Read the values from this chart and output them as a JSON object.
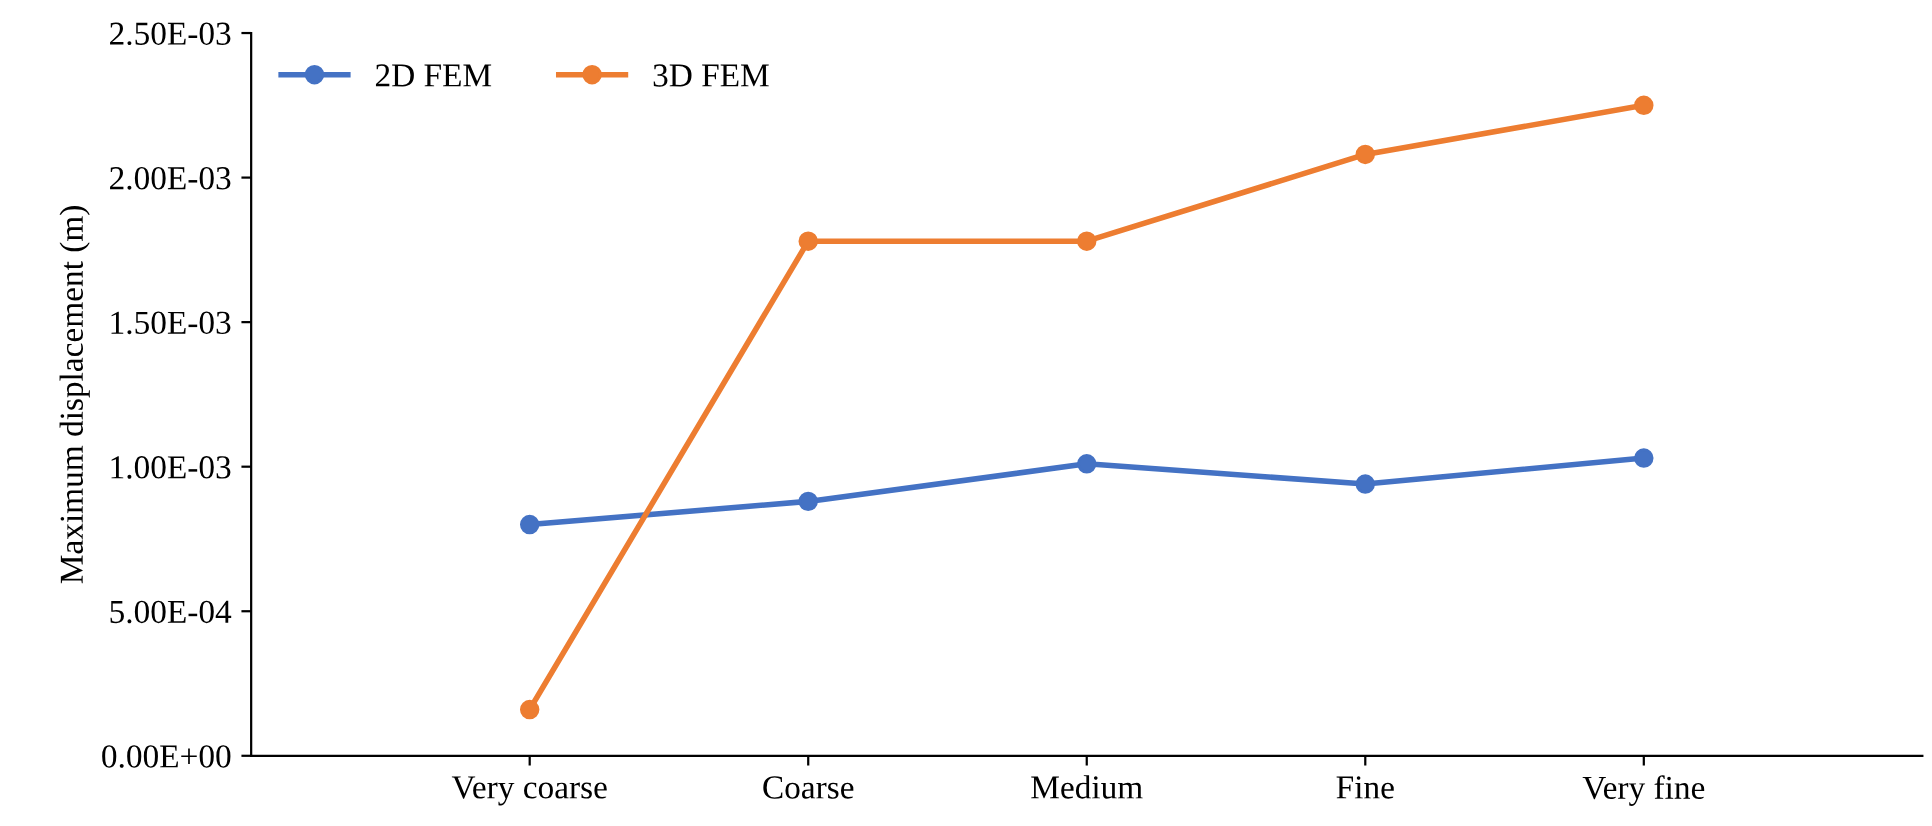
{
  "chart_data": {
    "type": "line",
    "ylabel": "Maximum displacement (m)",
    "categories": [
      "Very coarse",
      "Coarse",
      "Medium",
      "Fine",
      "Very fine"
    ],
    "series": [
      {
        "name": "2D FEM",
        "color": "#4472c4",
        "values": [
          0.0008,
          0.00088,
          0.00101,
          0.00094,
          0.00103
        ]
      },
      {
        "name": "3D FEM",
        "color": "#ed7d31",
        "values": [
          0.00016,
          0.00178,
          0.00178,
          0.00208,
          0.00225
        ]
      }
    ],
    "ylim": [
      0,
      0.0025
    ],
    "yticks": [
      {
        "value": 0,
        "label": "0.00E+00"
      },
      {
        "value": 0.0005,
        "label": "5.00E-04"
      },
      {
        "value": 0.001,
        "label": "1.00E-03"
      },
      {
        "value": 0.0015,
        "label": "1.50E-03"
      },
      {
        "value": 0.002,
        "label": "2.00E-03"
      },
      {
        "value": 0.0025,
        "label": "2.50E-03"
      }
    ],
    "grid": false,
    "legend": "top left",
    "marker": "circle",
    "line_style": "solid"
  }
}
